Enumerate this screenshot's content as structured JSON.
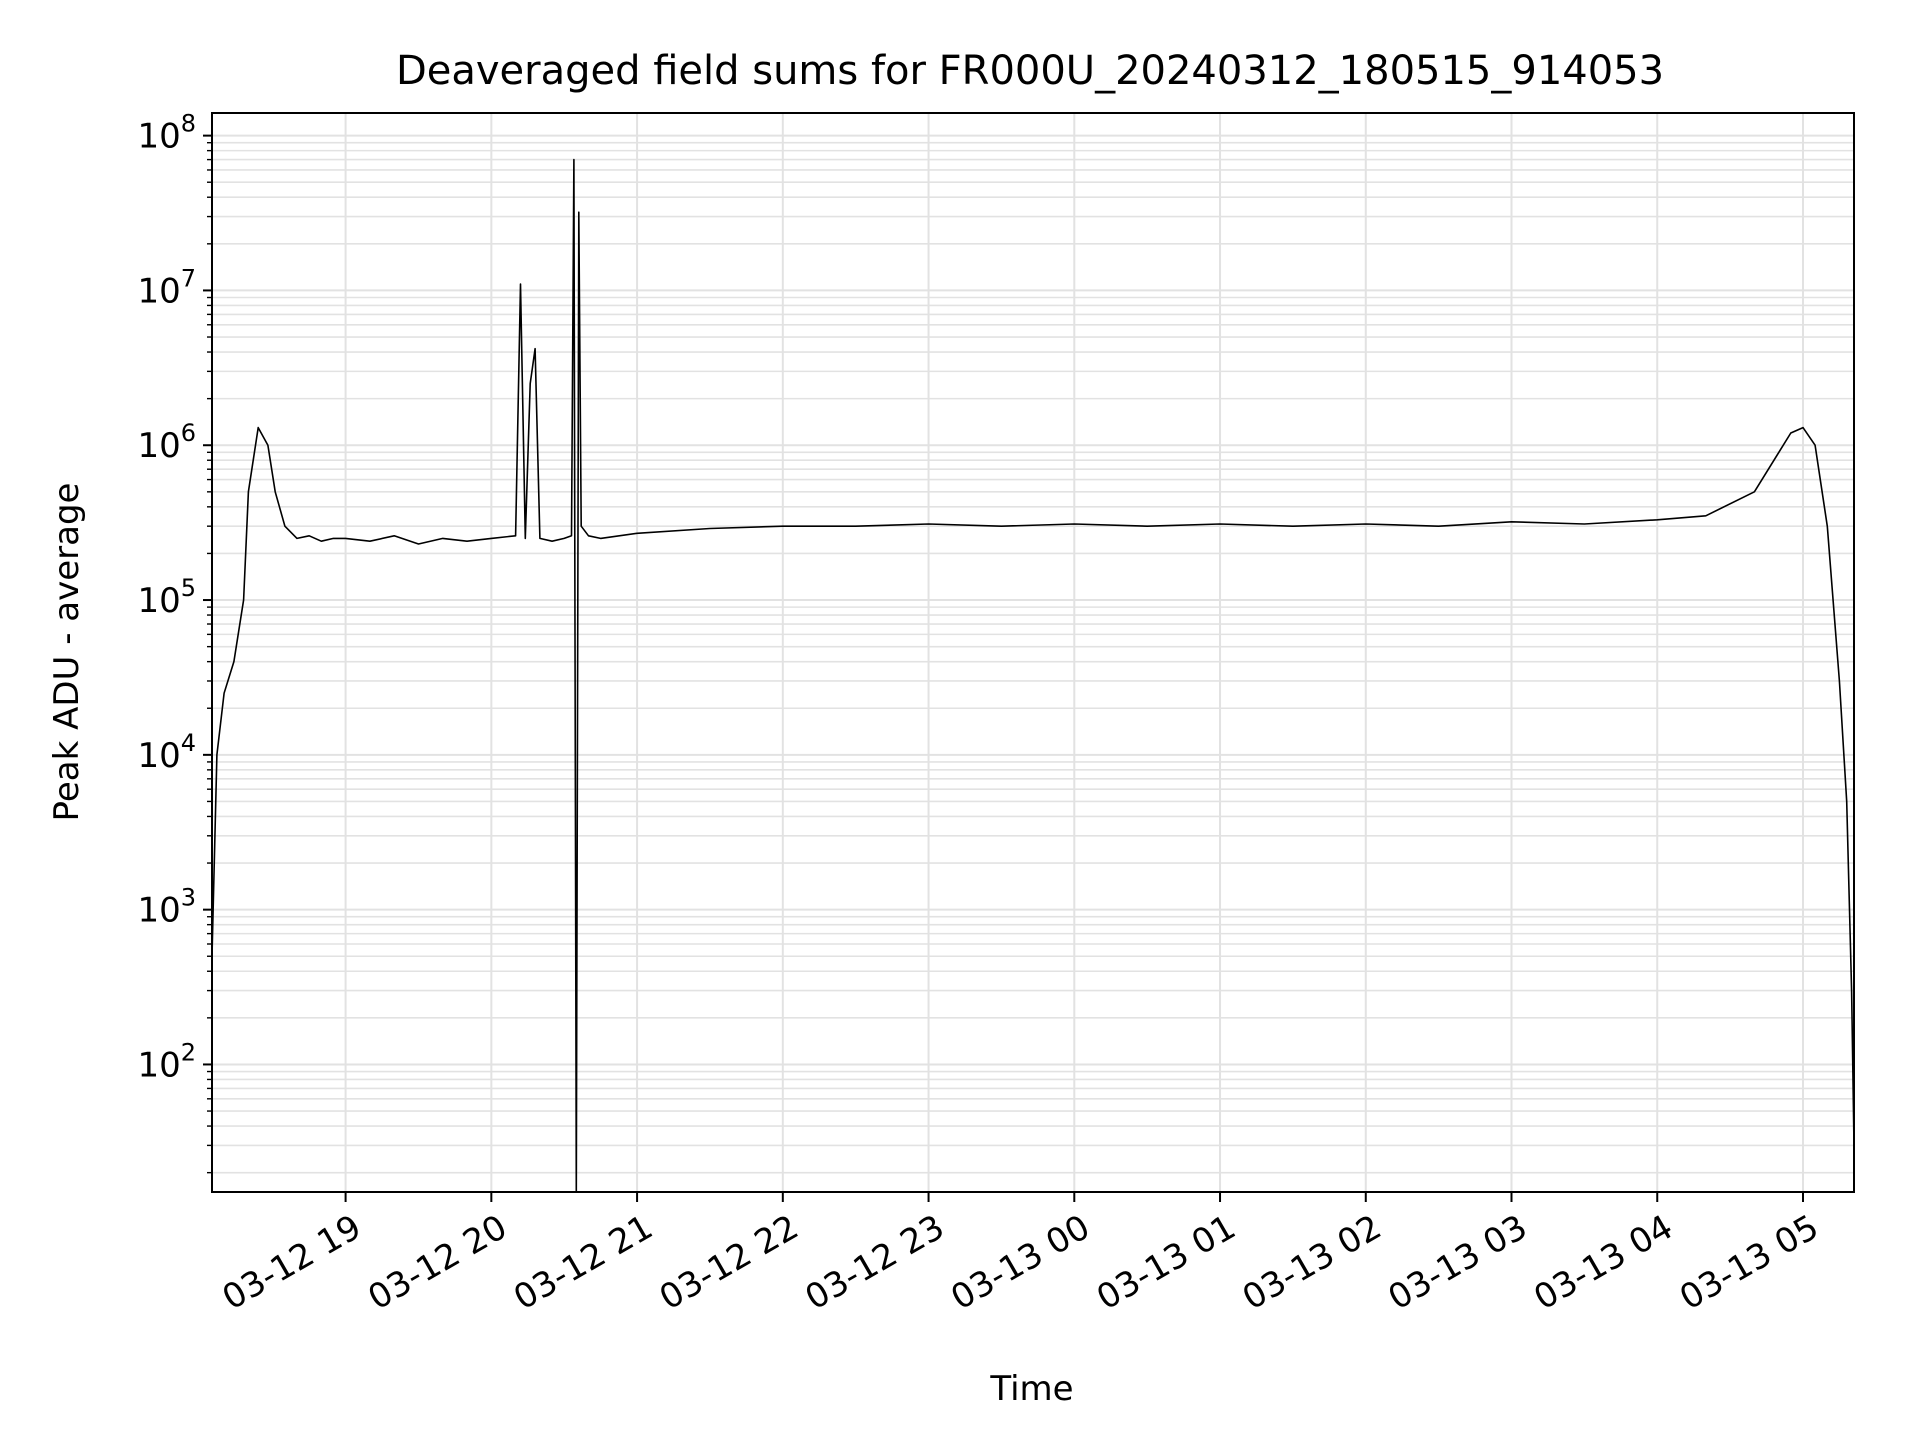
{
  "chart_data": {
    "type": "line",
    "title": "Deaveraged field sums for FR000U_20240312_180515_914053",
    "xlabel": "Time",
    "ylabel": "Peak ADU - average",
    "yscale": "log",
    "ylim": [
      15,
      140000000
    ],
    "xlim": [
      "2024-03-12 18:05",
      "2024-03-13 05:21"
    ],
    "grid": true,
    "line_color": "#000000",
    "x_tick_labels": [
      "03-12 19",
      "03-12 20",
      "03-12 21",
      "03-12 22",
      "03-12 23",
      "03-13 00",
      "03-13 01",
      "03-13 02",
      "03-13 03",
      "03-13 04",
      "03-13 05"
    ],
    "y_ticks": [
      {
        "base": "10",
        "exp": "2",
        "value": 100
      },
      {
        "base": "10",
        "exp": "3",
        "value": 1000
      },
      {
        "base": "10",
        "exp": "4",
        "value": 10000
      },
      {
        "base": "10",
        "exp": "5",
        "value": 100000
      },
      {
        "base": "10",
        "exp": "6",
        "value": 1000000
      },
      {
        "base": "10",
        "exp": "7",
        "value": 10000000
      },
      {
        "base": "10",
        "exp": "8",
        "value": 100000000
      }
    ],
    "series": [
      {
        "x": [
          "2024-03-12 18:05",
          "2024-03-12 18:07",
          "2024-03-12 18:10",
          "2024-03-12 18:14",
          "2024-03-12 18:18",
          "2024-03-12 18:20",
          "2024-03-12 18:24",
          "2024-03-12 18:28",
          "2024-03-12 18:31",
          "2024-03-12 18:35",
          "2024-03-12 18:40",
          "2024-03-12 18:45",
          "2024-03-12 18:50",
          "2024-03-12 18:55",
          "2024-03-12 19:00",
          "2024-03-12 19:10",
          "2024-03-12 19:20",
          "2024-03-12 19:30",
          "2024-03-12 19:40",
          "2024-03-12 19:50",
          "2024-03-12 20:00",
          "2024-03-12 20:10",
          "2024-03-12 20:12",
          "2024-03-12 20:14",
          "2024-03-12 20:16",
          "2024-03-12 20:18",
          "2024-03-12 20:20",
          "2024-03-12 20:25",
          "2024-03-12 20:30",
          "2024-03-12 20:33",
          "2024-03-12 20:34",
          "2024-03-12 20:35",
          "2024-03-12 20:36",
          "2024-03-12 20:37",
          "2024-03-12 20:40",
          "2024-03-12 20:45",
          "2024-03-12 21:00",
          "2024-03-12 21:30",
          "2024-03-12 22:00",
          "2024-03-12 22:30",
          "2024-03-12 23:00",
          "2024-03-12 23:30",
          "2024-03-13 00:00",
          "2024-03-13 00:30",
          "2024-03-13 01:00",
          "2024-03-13 01:30",
          "2024-03-13 02:00",
          "2024-03-13 02:30",
          "2024-03-13 03:00",
          "2024-03-13 03:30",
          "2024-03-13 04:00",
          "2024-03-13 04:20",
          "2024-03-13 04:40",
          "2024-03-13 04:55",
          "2024-03-13 05:00",
          "2024-03-13 05:05",
          "2024-03-13 05:10",
          "2024-03-13 05:15",
          "2024-03-13 05:18",
          "2024-03-13 05:20",
          "2024-03-13 05:21"
        ],
        "y": [
          500,
          10000,
          25000,
          40000,
          100000,
          500000,
          1300000,
          1000000,
          500000,
          300000,
          250000,
          260000,
          240000,
          250000,
          250000,
          240000,
          260000,
          230000,
          250000,
          240000,
          250000,
          260000,
          11000000,
          250000,
          2500000,
          4200000,
          250000,
          240000,
          250000,
          260000,
          70000000,
          15,
          32000000,
          300000,
          260000,
          250000,
          270000,
          290000,
          300000,
          300000,
          310000,
          300000,
          310000,
          300000,
          310000,
          300000,
          310000,
          300000,
          320000,
          310000,
          330000,
          350000,
          500000,
          1200000,
          1300000,
          1000000,
          300000,
          30000,
          5000,
          300,
          30
        ]
      }
    ]
  }
}
